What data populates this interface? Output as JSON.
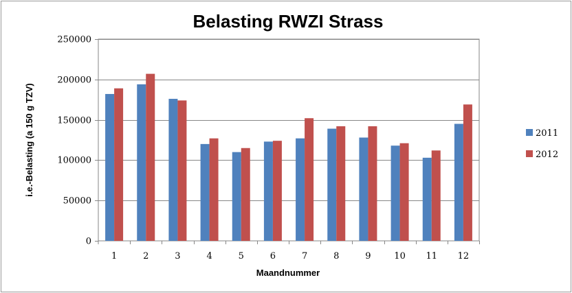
{
  "chart_data": {
    "type": "bar",
    "title": "Belasting RWZI Strass",
    "xlabel": "Maandnummer",
    "ylabel": "i.e.-Belasting (a 150 g TZV)",
    "categories": [
      "1",
      "2",
      "3",
      "4",
      "5",
      "6",
      "7",
      "8",
      "9",
      "10",
      "11",
      "12"
    ],
    "ylim": [
      0,
      250000
    ],
    "yticks": [
      "0",
      "50000",
      "100000",
      "150000",
      "200000",
      "250000"
    ],
    "grid": true,
    "legend_position": "right",
    "series": [
      {
        "name": "2011",
        "color": "#4f81bd",
        "values": [
          182000,
          194000,
          176000,
          120000,
          110000,
          123000,
          127000,
          139000,
          128000,
          118000,
          103000,
          145000
        ]
      },
      {
        "name": "2012",
        "color": "#c0504d",
        "values": [
          189000,
          207000,
          174000,
          127000,
          115000,
          124000,
          152000,
          142000,
          142000,
          121000,
          112000,
          169000
        ]
      }
    ]
  }
}
